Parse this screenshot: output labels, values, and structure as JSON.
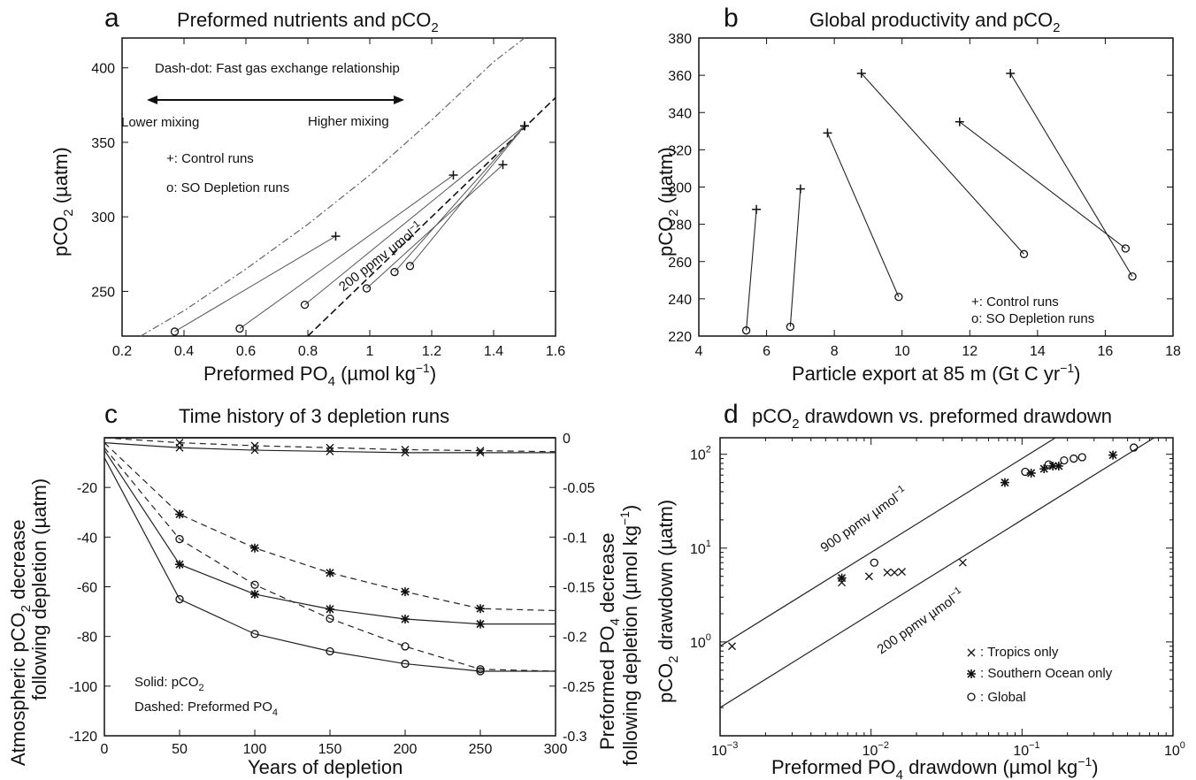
{
  "chart_data": [
    {
      "panel": "a",
      "title": "Preformed nutrients and pCO",
      "title_sub": "2",
      "type": "scatter",
      "xlabel": "Preformed PO",
      "xlabel_sub": "4",
      "xlabel_unit": " (µmol kg",
      "xlabel_sup": "−1",
      "xlabel_end": ")",
      "ylabel": "pCO",
      "ylabel_sub": "2",
      "ylabel_unit": " (µatm)",
      "xlim": [
        0.2,
        1.6
      ],
      "ylim": [
        220,
        420
      ],
      "xticks": [
        "0.2",
        "0.4",
        "0.6",
        "0.8",
        "1",
        "1.2",
        "1.4",
        "1.6"
      ],
      "yticks": [
        "250",
        "300",
        "350",
        "400"
      ],
      "annotations": {
        "dashdot": "Dash-dot: Fast gas exchange relationship",
        "lower": "Lower mixing",
        "higher": "Higher mixing",
        "control": "+: Control runs",
        "depletion": "o: SO Depletion runs",
        "slope": "200 ppmv µmol",
        "slope_sup": "−1"
      },
      "pairs": [
        {
          "control": [
            0.89,
            287
          ],
          "depletion": [
            0.37,
            223
          ]
        },
        {
          "control": [
            1.27,
            328
          ],
          "depletion": [
            0.58,
            225
          ]
        },
        {
          "control": [
            1.5,
            361
          ],
          "depletion": [
            0.79,
            241
          ]
        },
        {
          "control": [
            1.43,
            335
          ],
          "depletion": [
            0.99,
            252
          ]
        },
        {
          "control": [
            1.5,
            361
          ],
          "depletion": [
            1.08,
            263
          ]
        },
        {
          "control": [
            1.5,
            361
          ],
          "depletion": [
            1.13,
            267
          ]
        }
      ],
      "fast_exchange_curve": [
        [
          0.26,
          220
        ],
        [
          0.4,
          237
        ],
        [
          0.6,
          265
        ],
        [
          0.8,
          295
        ],
        [
          1.0,
          328
        ],
        [
          1.2,
          365
        ],
        [
          1.4,
          404
        ],
        [
          1.5,
          420
        ]
      ],
      "slope_line": [
        [
          0.8,
          220
        ],
        [
          1.6,
          380
        ]
      ]
    },
    {
      "panel": "b",
      "title": "Global productivity and pCO",
      "title_sub": "2",
      "type": "scatter",
      "xlabel": "Particle export at 85 m (Gt C yr",
      "xlabel_sup": "−1",
      "xlabel_end": ")",
      "ylabel": "pCO",
      "ylabel_sub": "2",
      "ylabel_unit": " (µatm)",
      "xlim": [
        4,
        18
      ],
      "ylim": [
        220,
        380
      ],
      "xticks": [
        "4",
        "6",
        "8",
        "10",
        "12",
        "14",
        "16",
        "18"
      ],
      "yticks": [
        "220",
        "240",
        "260",
        "280",
        "300",
        "320",
        "340",
        "360",
        "380"
      ],
      "legend": {
        "control": "+: Control runs",
        "depletion": "o: SO Depletion runs"
      },
      "pairs": [
        {
          "control": [
            5.7,
            288
          ],
          "depletion": [
            5.4,
            223
          ]
        },
        {
          "control": [
            7.0,
            299
          ],
          "depletion": [
            6.7,
            225
          ]
        },
        {
          "control": [
            7.8,
            329
          ],
          "depletion": [
            9.9,
            241
          ]
        },
        {
          "control": [
            8.8,
            361
          ],
          "depletion": [
            13.6,
            264
          ]
        },
        {
          "control": [
            11.7,
            335
          ],
          "depletion": [
            16.6,
            267
          ]
        },
        {
          "control": [
            13.2,
            361
          ],
          "depletion": [
            16.8,
            252
          ]
        }
      ]
    },
    {
      "panel": "c",
      "title": "Time history of 3 depletion runs",
      "type": "line",
      "xlabel": "Years of depletion",
      "ylabel_left_1": "Atmospheric pCO",
      "ylabel_left_sub": "2",
      "ylabel_left_1b": " decrease",
      "ylabel_left_2": "following depletion (µatm)",
      "ylabel_right_1": "Preformed PO",
      "ylabel_right_sub": "4",
      "ylabel_right_1b": " decrease",
      "ylabel_right_2": "following depletion (µmol kg",
      "ylabel_right_sup": "−1",
      "ylabel_right_end": ")",
      "xlim": [
        0,
        300
      ],
      "ylim_left": [
        -120,
        0
      ],
      "ylim_right": [
        -0.3,
        0
      ],
      "xticks": [
        "0",
        "50",
        "100",
        "150",
        "200",
        "250",
        "300"
      ],
      "yticks_left": [
        "-120",
        "-100",
        "-80",
        "-60",
        "-40",
        "-20"
      ],
      "yticks_right": [
        "-0.3",
        "-0.25",
        "-0.2",
        "-0.15",
        "-0.1",
        "-0.05",
        "0"
      ],
      "legend": {
        "solid": "Solid: pCO",
        "solid_sub": "2",
        "dashed": "Dashed: Preformed PO",
        "dashed_sub": "4"
      },
      "x": [
        0,
        50,
        100,
        150,
        200,
        250,
        300
      ],
      "series": [
        {
          "marker": "x",
          "style": "solid",
          "values": [
            -2,
            -4,
            -5,
            -5.5,
            -6,
            -6,
            -6
          ]
        },
        {
          "marker": "x",
          "style": "dashed",
          "axis": "right",
          "values": [
            0,
            -0.005,
            -0.008,
            -0.01,
            -0.012,
            -0.013,
            -0.014
          ]
        },
        {
          "marker": "*",
          "style": "solid",
          "values": [
            -5,
            -51,
            -63,
            -69,
            -73,
            -75,
            -75
          ]
        },
        {
          "marker": "*",
          "style": "dashed",
          "axis": "right",
          "values": [
            -0.005,
            -0.077,
            -0.111,
            -0.136,
            -0.155,
            -0.172,
            -0.174
          ]
        },
        {
          "marker": "o",
          "style": "solid",
          "values": [
            -8,
            -65,
            -79,
            -86,
            -91,
            -94,
            -94
          ]
        },
        {
          "marker": "o",
          "style": "dashed",
          "axis": "right",
          "values": [
            -0.01,
            -0.102,
            -0.148,
            -0.182,
            -0.21,
            -0.233,
            -0.235
          ]
        }
      ]
    },
    {
      "panel": "d",
      "title": "pCO",
      "title_sub": "2",
      "title_end": " drawdown vs. preformed drawdown",
      "type": "scatter",
      "log": true,
      "xlabel": "Preformed PO",
      "xlabel_sub": "4",
      "xlabel_end": " drawdown (µmol kg",
      "xlabel_sup": "−1",
      "xlabel_close": ")",
      "ylabel": "pCO",
      "ylabel_sub": "2",
      "ylabel_end": " drawdown (µatm)",
      "xlim": [
        0.001,
        1
      ],
      "ylim": [
        0.1,
        150
      ],
      "xticks": [
        {
          "base": "10",
          "exp": "−3"
        },
        {
          "base": "10",
          "exp": "−2"
        },
        {
          "base": "10",
          "exp": "−1"
        },
        {
          "base": "10",
          "exp": "0"
        }
      ],
      "yticks": [
        {
          "base": "10",
          "exp": "0"
        },
        {
          "base": "10",
          "exp": "1"
        },
        {
          "base": "10",
          "exp": "2"
        }
      ],
      "line_labels": {
        "l900": "900 ppmv  µmol",
        "l200": "200 ppmv  µmol",
        "sup": "−1"
      },
      "legend": {
        "tropics": ": Tropics only",
        "southern": ": Southern Ocean only",
        "global": ": Global"
      },
      "tropics": [
        [
          0.0012,
          0.9
        ],
        [
          0.0064,
          4.3
        ],
        [
          0.0097,
          5
        ],
        [
          0.0128,
          5.5
        ],
        [
          0.0143,
          5.5
        ],
        [
          0.016,
          5.6
        ],
        [
          0.0405,
          7
        ]
      ],
      "southern": [
        [
          0.0064,
          4.8
        ],
        [
          0.077,
          50
        ],
        [
          0.115,
          63
        ],
        [
          0.14,
          70
        ],
        [
          0.16,
          75
        ],
        [
          0.175,
          75
        ],
        [
          0.4,
          98
        ]
      ],
      "global": [
        [
          0.0105,
          7
        ],
        [
          0.105,
          65
        ],
        [
          0.15,
          78
        ],
        [
          0.19,
          86
        ],
        [
          0.22,
          90
        ],
        [
          0.25,
          93
        ],
        [
          0.55,
          118
        ]
      ]
    }
  ]
}
